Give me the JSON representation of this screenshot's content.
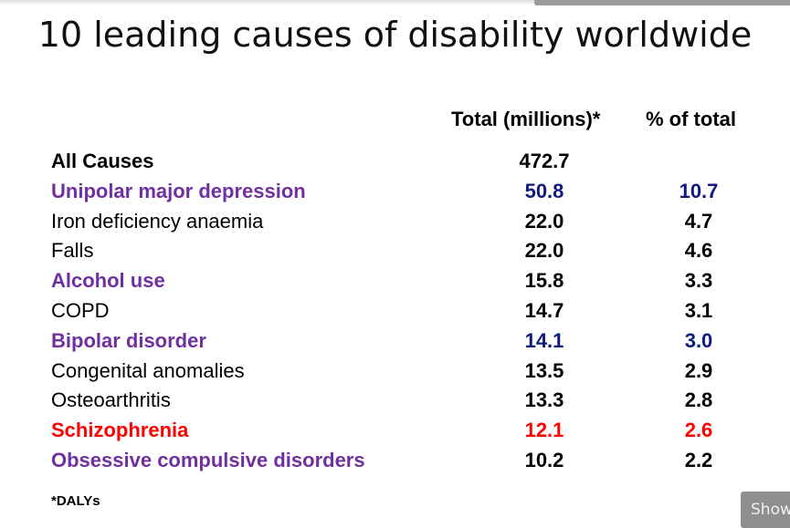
{
  "title": "10 leading causes of disability worldwide",
  "headers": {
    "total": "Total (millions)*",
    "percent": "% of total"
  },
  "rows": [
    {
      "cause": "All Causes",
      "total": "472.7",
      "percent": "",
      "color": "#000000",
      "bold": true,
      "value_color": "#000000"
    },
    {
      "cause": "Unipolar major depression",
      "total": "50.8",
      "percent": "10.7",
      "color": "#7030a0",
      "bold": true,
      "value_color": "#0d1a80"
    },
    {
      "cause": "Iron deficiency anaemia",
      "total": "22.0",
      "percent": "4.7",
      "color": "#000000",
      "bold": false,
      "value_color": "#000000"
    },
    {
      "cause": "Falls",
      "total": "22.0",
      "percent": "4.6",
      "color": "#000000",
      "bold": false,
      "value_color": "#000000"
    },
    {
      "cause": "Alcohol use",
      "total": "15.8",
      "percent": "3.3",
      "color": "#7030a0",
      "bold": true,
      "value_color": "#000000"
    },
    {
      "cause": "COPD",
      "total": "14.7",
      "percent": "3.1",
      "color": "#000000",
      "bold": false,
      "value_color": "#000000"
    },
    {
      "cause": "Bipolar disorder",
      "total": "14.1",
      "percent": "3.0",
      "color": "#7030a0",
      "bold": true,
      "value_color": "#0d1a80"
    },
    {
      "cause": "Congenital anomalies",
      "total": "13.5",
      "percent": "2.9",
      "color": "#000000",
      "bold": false,
      "value_color": "#000000"
    },
    {
      "cause": "Osteoarthritis",
      "total": "13.3",
      "percent": "2.8",
      "color": "#000000",
      "bold": false,
      "value_color": "#000000"
    },
    {
      "cause": "Schizophrenia",
      "total": "12.1",
      "percent": "2.6",
      "color": "#ff0000",
      "bold": true,
      "value_color": "#ff0000"
    },
    {
      "cause": "Obsessive compulsive disorders",
      "total": "10.2",
      "percent": "2.2",
      "color": "#7030a0",
      "bold": true,
      "value_color": "#000000"
    }
  ],
  "footnote": "*DALYs",
  "show_button": {
    "label": "Show"
  }
}
